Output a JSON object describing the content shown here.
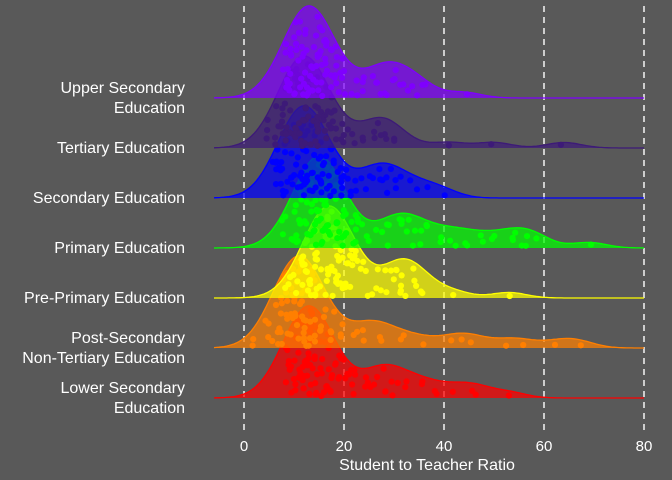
{
  "chart_data": {
    "type": "ridgeline",
    "xlabel": "Student to Teacher Ratio",
    "ylabel": "",
    "xlim": [
      -6,
      80
    ],
    "xticks": [
      0,
      20,
      40,
      60,
      80
    ],
    "grid": "dashed vertical lines at x ticks",
    "background": "#595959",
    "series": [
      {
        "name": "Lower Secondary Education",
        "color": "#ff0000",
        "mode": 13,
        "tail_max": 53,
        "points": [
          9,
          10,
          11,
          12,
          13,
          13,
          14,
          15,
          16,
          17,
          18,
          19,
          20,
          21,
          22,
          24,
          26,
          28,
          30,
          33,
          36,
          38,
          42,
          45,
          47,
          53
        ]
      },
      {
        "name": "Post-Secondary Non-Tertiary Education",
        "color": "#ff7f00",
        "mode": 11,
        "tail_max": 67,
        "points": [
          2,
          5,
          7,
          8,
          9,
          10,
          11,
          12,
          13,
          14,
          16,
          18,
          20,
          22,
          24,
          27,
          32,
          36,
          41,
          44,
          46,
          52,
          56,
          63,
          67
        ]
      },
      {
        "name": "Pre-Primary Education",
        "color": "#ffff00",
        "mode": 17,
        "tail_max": 53,
        "points": [
          9,
          10,
          11,
          12,
          13,
          14,
          15,
          16,
          17,
          18,
          19,
          20,
          21,
          22,
          24,
          26,
          28,
          30,
          31,
          32,
          34,
          36,
          42,
          53
        ]
      },
      {
        "name": "Primary Education",
        "color": "#00ff00",
        "mode": 15,
        "tail_max": 69,
        "points": [
          8,
          10,
          11,
          12,
          13,
          14,
          15,
          16,
          17,
          18,
          19,
          20,
          21,
          22,
          23,
          25,
          27,
          29,
          31,
          33,
          35,
          37,
          40,
          42,
          44,
          47,
          50,
          53,
          55,
          57,
          59,
          69
        ]
      },
      {
        "name": "Secondary Education",
        "color": "#0000ff",
        "mode": 12,
        "tail_max": 40,
        "points": [
          6,
          7,
          8,
          9,
          10,
          11,
          12,
          13,
          14,
          15,
          16,
          17,
          18,
          19,
          20,
          21,
          23,
          25,
          27,
          29,
          31,
          34,
          37,
          40
        ]
      },
      {
        "name": "Tertiary Education",
        "color": "#3d1a78",
        "mode": 12,
        "tail_max": 64,
        "points": [
          5,
          7,
          8,
          9,
          10,
          11,
          12,
          13,
          14,
          15,
          16,
          17,
          18,
          19,
          20,
          22,
          24,
          26,
          28,
          30,
          41,
          50,
          64
        ]
      },
      {
        "name": "Upper Secondary Education",
        "color": "#7f00ff",
        "mode": 13,
        "tail_max": 44,
        "points": [
          8,
          9,
          10,
          11,
          12,
          13,
          14,
          15,
          16,
          17,
          18,
          19,
          20,
          22,
          24,
          26,
          28,
          30,
          32,
          34,
          36,
          44
        ]
      }
    ]
  }
}
